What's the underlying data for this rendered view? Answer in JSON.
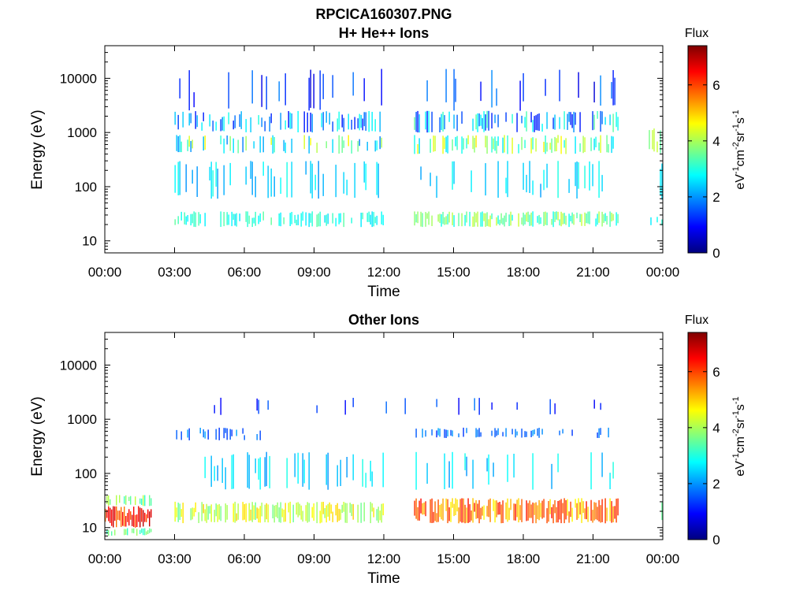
{
  "figure": {
    "title": "RPCICA160307.PNG",
    "colors": {
      "background": "#ffffff",
      "axis": "#000000"
    }
  },
  "chart_data": [
    {
      "type": "heatmap",
      "title": "H+ He++ Ions",
      "xlabel": "Time",
      "ylabel": "Energy (eV)",
      "x_ticks": [
        "00:00",
        "03:00",
        "06:00",
        "09:00",
        "12:00",
        "15:00",
        "18:00",
        "21:00",
        "00:00"
      ],
      "x_tick_hours": [
        0,
        3,
        6,
        9,
        12,
        15,
        18,
        21,
        24
      ],
      "xlim_hours": [
        0,
        24
      ],
      "y_scale": "log",
      "y_ticks": [
        "10",
        "100",
        "1000",
        "10000"
      ],
      "y_tick_values": [
        10,
        100,
        1000,
        10000
      ],
      "ylim": [
        6,
        40000
      ],
      "colorbar": {
        "label": "Flux",
        "unit": "eV-1cm-2sr-1s-1",
        "ticks": [
          "0",
          "2",
          "4",
          "6"
        ],
        "tick_values": [
          0,
          2,
          4,
          6
        ],
        "range": [
          0,
          7.4
        ],
        "colormap": "jet"
      },
      "data_gaps_hours": [
        [
          0.0,
          3.0
        ],
        [
          12.0,
          13.3
        ],
        [
          22.1,
          23.4
        ]
      ],
      "bands": [
        {
          "t0": 3.0,
          "t1": 12.0,
          "e0": 18,
          "e1": 35,
          "flux": [
            2.5,
            3.5
          ],
          "density": 0.55
        },
        {
          "t0": 13.3,
          "t1": 22.1,
          "e0": 18,
          "e1": 35,
          "flux": [
            2.8,
            4.3
          ],
          "density": 0.75
        },
        {
          "t0": 23.4,
          "t1": 24.0,
          "e0": 18,
          "e1": 35,
          "flux": [
            2.5,
            3.5
          ],
          "density": 0.5
        },
        {
          "t0": 3.0,
          "t1": 12.0,
          "e0": 60,
          "e1": 300,
          "flux": [
            2.0,
            3.0
          ],
          "density": 0.25
        },
        {
          "t0": 13.3,
          "t1": 22.1,
          "e0": 60,
          "e1": 300,
          "flux": [
            2.0,
            3.0
          ],
          "density": 0.2
        },
        {
          "t0": 23.4,
          "t1": 24.0,
          "e0": 50,
          "e1": 300,
          "flux": [
            2.0,
            3.0
          ],
          "density": 0.3
        },
        {
          "t0": 3.0,
          "t1": 12.0,
          "e0": 400,
          "e1": 900,
          "flux": [
            1.8,
            4.8
          ],
          "density": 0.35
        },
        {
          "t0": 13.3,
          "t1": 22.1,
          "e0": 400,
          "e1": 900,
          "flux": [
            2.5,
            4.8
          ],
          "density": 0.5
        },
        {
          "t0": 23.4,
          "t1": 24.0,
          "e0": 400,
          "e1": 1200,
          "flux": [
            2.5,
            4.5
          ],
          "density": 0.5
        },
        {
          "t0": 3.0,
          "t1": 12.0,
          "e0": 1000,
          "e1": 2500,
          "flux": [
            1.0,
            3.0
          ],
          "density": 0.45
        },
        {
          "t0": 13.3,
          "t1": 22.1,
          "e0": 1000,
          "e1": 2500,
          "flux": [
            1.0,
            3.5
          ],
          "density": 0.5
        },
        {
          "t0": 3.0,
          "t1": 12.0,
          "e0": 2500,
          "e1": 15000,
          "flux": [
            0.6,
            2.0
          ],
          "density": 0.12
        },
        {
          "t0": 13.3,
          "t1": 22.1,
          "e0": 2500,
          "e1": 15000,
          "flux": [
            0.6,
            2.0
          ],
          "density": 0.14
        }
      ]
    },
    {
      "type": "heatmap",
      "title": "Other Ions",
      "xlabel": "Time",
      "ylabel": "Energy (eV)",
      "x_ticks": [
        "00:00",
        "03:00",
        "06:00",
        "09:00",
        "12:00",
        "15:00",
        "18:00",
        "21:00",
        "00:00"
      ],
      "x_tick_hours": [
        0,
        3,
        6,
        9,
        12,
        15,
        18,
        21,
        24
      ],
      "xlim_hours": [
        0,
        24
      ],
      "y_scale": "log",
      "y_ticks": [
        "10",
        "100",
        "1000",
        "10000"
      ],
      "y_tick_values": [
        10,
        100,
        1000,
        10000
      ],
      "ylim": [
        6,
        40000
      ],
      "colorbar": {
        "label": "Flux",
        "unit": "eV-1cm-2sr-1s-1",
        "ticks": [
          "0",
          "2",
          "4",
          "6"
        ],
        "tick_values": [
          0,
          2,
          4,
          6
        ],
        "range": [
          0,
          7.4
        ],
        "colormap": "jet"
      },
      "data_gaps_hours": [
        [
          2.0,
          3.0
        ],
        [
          12.0,
          13.3
        ],
        [
          22.1,
          23.4
        ]
      ],
      "bands": [
        {
          "t0": 0.0,
          "t1": 2.0,
          "e0": 10,
          "e1": 25,
          "flux": [
            5.5,
            7.0
          ],
          "density": 1.0
        },
        {
          "t0": 0.0,
          "t1": 2.0,
          "e0": 7,
          "e1": 10,
          "flux": [
            3.0,
            4.0
          ],
          "density": 0.7
        },
        {
          "t0": 0.0,
          "t1": 2.0,
          "e0": 25,
          "e1": 40,
          "flux": [
            3.0,
            4.2
          ],
          "density": 0.5
        },
        {
          "t0": 3.0,
          "t1": 12.0,
          "e0": 12,
          "e1": 30,
          "flux": [
            3.5,
            5.0
          ],
          "density": 0.75
        },
        {
          "t0": 13.3,
          "t1": 22.1,
          "e0": 12,
          "e1": 35,
          "flux": [
            4.5,
            6.5
          ],
          "density": 0.9
        },
        {
          "t0": 23.4,
          "t1": 24.0,
          "e0": 12,
          "e1": 30,
          "flux": [
            3.5,
            4.8
          ],
          "density": 0.6
        },
        {
          "t0": 3.0,
          "t1": 12.0,
          "e0": 50,
          "e1": 250,
          "flux": [
            2.0,
            3.0
          ],
          "density": 0.22
        },
        {
          "t0": 13.3,
          "t1": 22.1,
          "e0": 50,
          "e1": 250,
          "flux": [
            2.0,
            3.0
          ],
          "density": 0.15
        },
        {
          "t0": 3.0,
          "t1": 7.0,
          "e0": 400,
          "e1": 700,
          "flux": [
            1.2,
            2.2
          ],
          "density": 0.4
        },
        {
          "t0": 13.3,
          "t1": 22.1,
          "e0": 450,
          "e1": 700,
          "flux": [
            1.2,
            2.2
          ],
          "density": 0.35
        },
        {
          "t0": 3.0,
          "t1": 22.1,
          "e0": 1200,
          "e1": 2500,
          "flux": [
            0.8,
            1.8
          ],
          "density": 0.06
        }
      ]
    }
  ]
}
